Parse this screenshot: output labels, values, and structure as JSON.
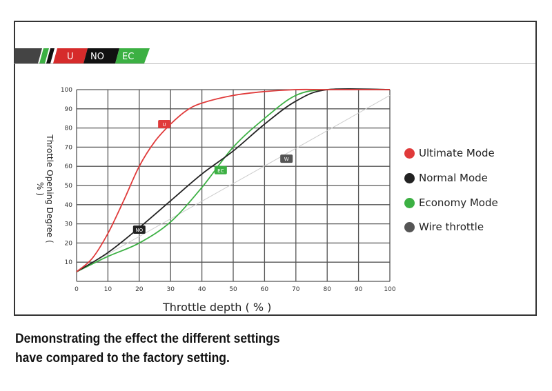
{
  "banner": {
    "u": "U",
    "no": "NO",
    "ec": "EC"
  },
  "caption": [
    "Demonstrating the effect the different settings",
    "have compared to the factory setting."
  ],
  "chart_data": {
    "type": "line",
    "xlabel": "Throttle depth ( % )",
    "ylabel": "Throttle Opening Degree ( % )",
    "xlim": [
      0,
      100
    ],
    "ylim": [
      0,
      100
    ],
    "xticks": [
      0,
      10,
      20,
      30,
      40,
      50,
      60,
      70,
      80,
      90,
      100
    ],
    "yticks": [
      10,
      20,
      30,
      40,
      50,
      60,
      70,
      80,
      90,
      100
    ],
    "grid": true,
    "legend_position": "right",
    "series": [
      {
        "name": "Ultimate Mode",
        "tag": "U",
        "color": "#e03a3a",
        "x": [
          0,
          5,
          10,
          15,
          20,
          25,
          30,
          35,
          40,
          50,
          60,
          70,
          80,
          100
        ],
        "y": [
          5,
          12,
          25,
          42,
          60,
          73,
          82,
          89,
          93,
          97,
          99,
          100,
          100,
          100
        ],
        "tag_at": [
          28,
          82
        ]
      },
      {
        "name": "Normal Mode",
        "tag": "NO",
        "color": "#222222",
        "x": [
          0,
          10,
          20,
          30,
          40,
          50,
          60,
          70,
          80,
          100
        ],
        "y": [
          5,
          15,
          28,
          42,
          56,
          68,
          82,
          94,
          100,
          100
        ],
        "tag_at": [
          20,
          27
        ]
      },
      {
        "name": "Economy Mode",
        "tag": "EC",
        "color": "#3cb043",
        "x": [
          0,
          10,
          20,
          30,
          40,
          50,
          60,
          70,
          80,
          100
        ],
        "y": [
          5,
          13,
          20,
          31,
          49,
          70,
          85,
          97,
          100,
          100
        ],
        "tag_at": [
          46,
          58
        ]
      },
      {
        "name": "Wire throttle",
        "tag": "W",
        "color": "#cccccc",
        "x": [
          0,
          100
        ],
        "y": [
          5,
          97
        ],
        "tag_at": [
          67,
          64
        ]
      }
    ]
  },
  "legend_colors": [
    "#e03a3a",
    "#222222",
    "#3cb043",
    "#555555"
  ]
}
